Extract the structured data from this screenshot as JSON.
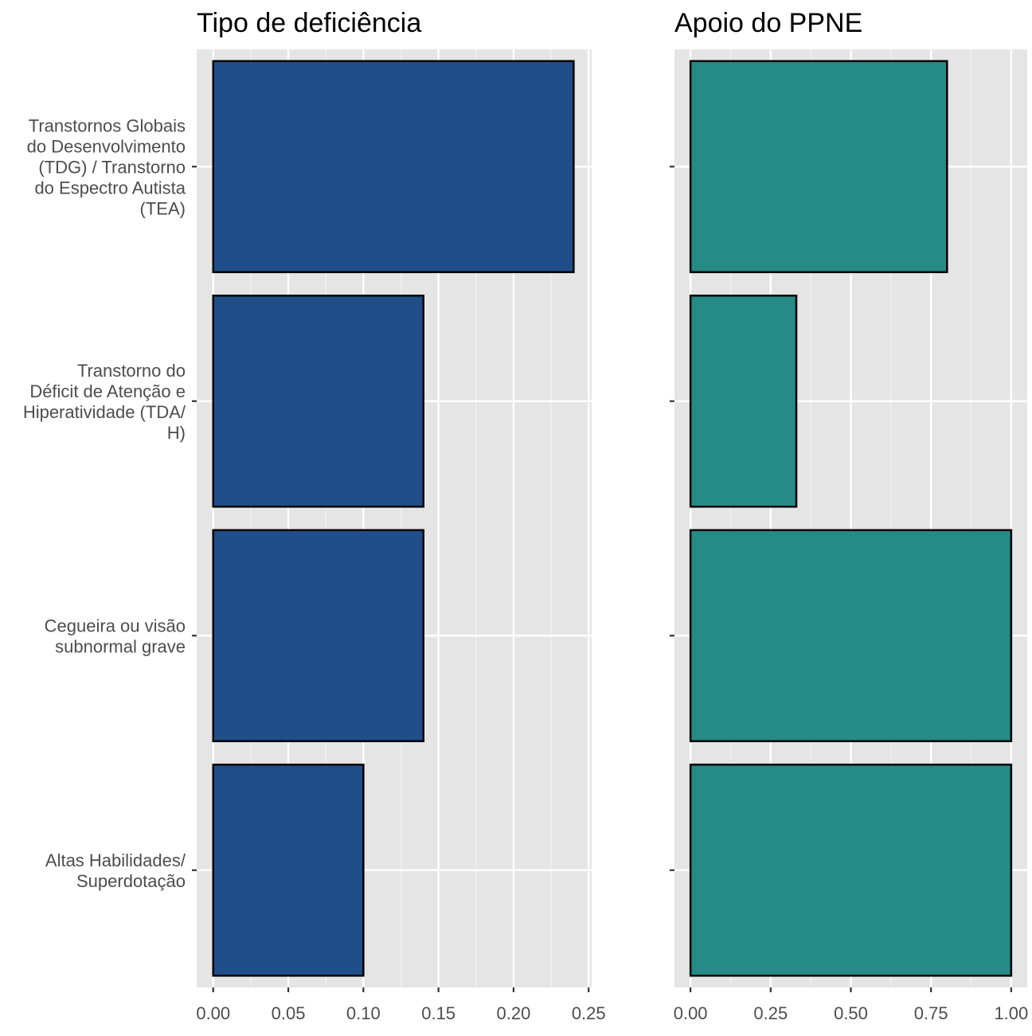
{
  "chart_data": [
    {
      "type": "bar",
      "orientation": "horizontal",
      "title": "Tipo de deficiência",
      "categories": [
        "Transtornos Globais do Desenvolvimento (TDG) / Transtorno do Espectro Autista (TEA)",
        "Transtorno do Déficit de Atenção e Hiperatividade (TDA/H)",
        "Cegueira ou visão subnormal grave",
        "Altas Habilidades/ Superdotação"
      ],
      "category_label_lines": [
        [
          "Transtornos Globais",
          "do Desenvolvimento",
          "(TDG) / Transtorno",
          "do Espectro Autista",
          "(TEA)"
        ],
        [
          "Transtorno do",
          "Déficit de Atenção e",
          "Hiperatividade (TDA/",
          "H)"
        ],
        [
          "Cegueira ou visão",
          "subnormal grave"
        ],
        [
          "Altas Habilidades/",
          "Superdotação"
        ]
      ],
      "values": [
        0.24,
        0.14,
        0.14,
        0.1
      ],
      "xlim": [
        -0.011,
        0.252
      ],
      "xticks": [
        "0.00",
        "0.05",
        "0.10",
        "0.15",
        "0.20",
        "0.25"
      ],
      "xlabel": "",
      "ylabel": "",
      "grid": true,
      "bar_color": "#1f4e89",
      "bar_edge_color": "#000000",
      "panel_background": "#e5e5e5"
    },
    {
      "type": "bar",
      "orientation": "horizontal",
      "title": "Apoio do PPNE",
      "categories": [
        "Transtornos Globais do Desenvolvimento (TDG) / Transtorno do Espectro Autista (TEA)",
        "Transtorno do Déficit de Atenção e Hiperatividade (TDA/H)",
        "Cegueira ou visão subnormal grave",
        "Altas Habilidades/ Superdotação"
      ],
      "values": [
        0.8,
        0.33,
        1.0,
        1.0
      ],
      "xlim": [
        -0.05,
        1.05
      ],
      "xticks": [
        "0.00",
        "0.25",
        "0.50",
        "0.75",
        "1.00"
      ],
      "xlabel": "",
      "ylabel": "",
      "grid": true,
      "bar_color": "#268a87",
      "bar_edge_color": "#000000",
      "panel_background": "#e5e5e5"
    }
  ]
}
